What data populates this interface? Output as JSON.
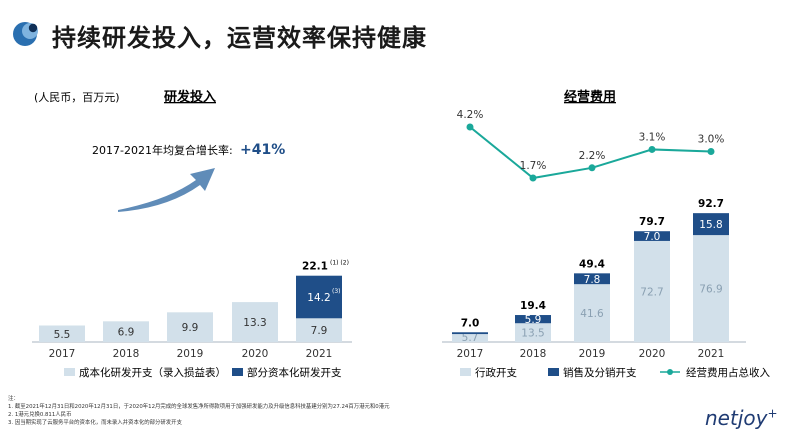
{
  "header": {
    "title": "持续研发投入，运营效率保持健康"
  },
  "brand": {
    "name": "netjoy",
    "suffix": "+"
  },
  "colors": {
    "light_bar": "#d2e0ea",
    "dark_bar": "#1f4e88",
    "line": "#1aa89a",
    "text_muted": "#8aa0b2"
  },
  "chart_data": [
    {
      "type": "bar",
      "title": "研发投入",
      "unit_note": "(人民币，百万元)",
      "cagr_label": "2017-2021年均复合增长率:",
      "cagr_value": "+41%",
      "categories": [
        "2017",
        "2018",
        "2019",
        "2020",
        "2021"
      ],
      "series": [
        {
          "name": "成本化研发开支（录入损益表）",
          "values": [
            5.5,
            6.9,
            9.9,
            13.3,
            7.9
          ]
        },
        {
          "name": "部分资本化研发开支",
          "values": [
            0,
            0,
            0,
            0,
            14.2
          ]
        }
      ],
      "segment_labels": [
        [
          "5.5",
          "6.9",
          "9.9",
          "13.3",
          "7.9"
        ],
        [
          "",
          "",
          "",
          "",
          "14.2"
        ]
      ],
      "segment_footnotes": [
        [
          "",
          "",
          "",
          "",
          ""
        ],
        [
          "",
          "",
          "",
          "",
          "(3)"
        ]
      ],
      "totals": [
        "",
        "",
        "",
        "",
        "22.1"
      ],
      "total_footnotes": [
        "",
        "",
        "",
        "",
        "(1) (2)"
      ],
      "ylim": [
        0,
        24
      ]
    },
    {
      "type": "bar",
      "title": "经营费用",
      "categories": [
        "2017",
        "2018",
        "2019",
        "2020",
        "2021"
      ],
      "series": [
        {
          "name": "行政开支",
          "values": [
            5.7,
            13.5,
            41.6,
            72.7,
            76.9
          ]
        },
        {
          "name": "销售及分销开支",
          "values": [
            1.3,
            5.9,
            7.8,
            7.0,
            15.8
          ]
        }
      ],
      "segment_labels": [
        [
          "5.7",
          "13.5",
          "41.6",
          "72.7",
          "76.9"
        ],
        [
          "",
          "5.9",
          "7.8",
          "7.0",
          "15.8"
        ]
      ],
      "totals": [
        "7.0",
        "19.4",
        "49.4",
        "79.7",
        "92.7"
      ],
      "line": {
        "name": "经营费用占总收入",
        "values": [
          4.2,
          1.7,
          2.2,
          3.1,
          3.0
        ],
        "labels": [
          "4.2%",
          "1.7%",
          "2.2%",
          "3.1%",
          "3.0%"
        ]
      },
      "ylim": [
        0,
        100
      ]
    }
  ],
  "notes": {
    "heading": "注：",
    "items": [
      "1.   截至2021年12月31日和2020年12月31日，于2020年12月完成的全球发售净所得款项用于加强研发能力及升级信息科技基建分别为27.24百万港元和0港元",
      "2.   1港元兑换0.811人民币",
      "3.   因当期实现了云服务平台的资本化，而未录入并资本化的部分研发开支"
    ]
  }
}
